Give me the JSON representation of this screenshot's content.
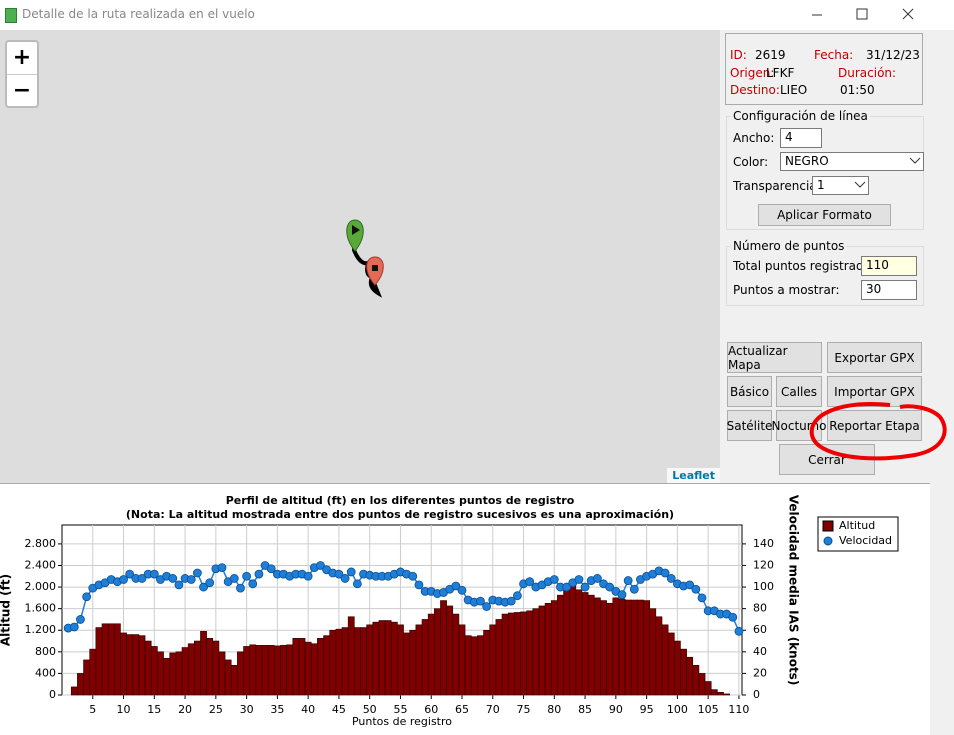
{
  "window": {
    "title": "Detalle de la ruta realizada en el vuelo"
  },
  "map": {
    "zoom_in": "+",
    "zoom_out": "−",
    "attribution": "Leaflet"
  },
  "info": {
    "id_label": "ID:",
    "id": "2619",
    "date_label": "Fecha:",
    "date": "31/12/23",
    "origin_label": "Origen:",
    "origin": "LFKF",
    "duration_label": "Duración:",
    "destination_label": "Destino:",
    "destination": "LIEO",
    "duration": "01:50"
  },
  "config": {
    "title": "Configuración de línea",
    "width_label": "Ancho:",
    "width": "4",
    "color_label": "Color:",
    "color": "NEGRO",
    "transparency_label": "Transparencia:",
    "transparency": "1",
    "apply": "Aplicar Formato"
  },
  "points": {
    "title": "Número de puntos",
    "total_label": "Total puntos registrados:",
    "total": "110",
    "show_label": "Puntos a mostrar:",
    "show": "30"
  },
  "buttons": {
    "update_map": "Actualizar Mapa",
    "export_gpx": "Exportar GPX",
    "basic": "Básico",
    "streets": "Calles",
    "import_gpx": "Importar GPX",
    "satellite": "Satélite",
    "night": "Nocturno",
    "report": "Reportar Etapa",
    "close": "Cerrar"
  },
  "chart_data": {
    "type": "bar_line",
    "title": "Perfil de altitud (ft) en los diferentes puntos de registro",
    "subtitle": "(Nota: La altitud mostrada entre dos puntos de registro sucesivos es una aproximación)",
    "x_label": "Puntos de registro",
    "y_label": "Altitud (ft)",
    "y2_label": "Velocidad media IAS (knots)",
    "x": [
      1,
      2,
      3,
      4,
      5,
      6,
      7,
      8,
      9,
      10,
      11,
      12,
      13,
      14,
      15,
      16,
      17,
      18,
      19,
      20,
      21,
      22,
      23,
      24,
      25,
      26,
      27,
      28,
      29,
      30,
      31,
      32,
      33,
      34,
      35,
      36,
      37,
      38,
      39,
      40,
      41,
      42,
      43,
      44,
      45,
      46,
      47,
      48,
      49,
      50,
      51,
      52,
      53,
      54,
      55,
      56,
      57,
      58,
      59,
      60,
      61,
      62,
      63,
      64,
      65,
      66,
      67,
      68,
      69,
      70,
      71,
      72,
      73,
      74,
      75,
      76,
      77,
      78,
      79,
      80,
      81,
      82,
      83,
      84,
      85,
      86,
      87,
      88,
      89,
      90,
      91,
      92,
      93,
      94,
      95,
      96,
      97,
      98,
      99,
      100,
      101,
      102,
      103,
      104,
      105,
      106,
      107,
      108,
      109,
      110
    ],
    "series": [
      {
        "name": "Altitud",
        "color": "#800000",
        "values": [
          0,
          150,
          400,
          650,
          850,
          1250,
          1320,
          1320,
          1320,
          1150,
          1120,
          1120,
          1100,
          1000,
          900,
          800,
          680,
          780,
          800,
          880,
          950,
          1000,
          1180,
          1050,
          1000,
          800,
          650,
          550,
          800,
          900,
          930,
          920,
          920,
          920,
          910,
          920,
          930,
          1050,
          1050,
          980,
          950,
          1050,
          1100,
          1200,
          1220,
          1250,
          1450,
          1250,
          1250,
          1300,
          1350,
          1380,
          1380,
          1350,
          1300,
          1150,
          1200,
          1300,
          1400,
          1500,
          1600,
          1750,
          1650,
          1500,
          1300,
          1100,
          1080,
          1100,
          1200,
          1300,
          1400,
          1500,
          1520,
          1530,
          1540,
          1560,
          1600,
          1650,
          1700,
          1750,
          1850,
          1950,
          2050,
          1950,
          1900,
          1850,
          1800,
          1750,
          1700,
          1800,
          1780,
          1760,
          1760,
          1760,
          1750,
          1600,
          1450,
          1300,
          1150,
          1000,
          850,
          700,
          550,
          400,
          250,
          100,
          50,
          20,
          0,
          0
        ]
      },
      {
        "name": "Velocidad",
        "color": "#1f7fd8",
        "axis": "y2",
        "values": [
          62,
          63,
          70,
          91,
          99,
          102,
          104,
          107,
          105,
          107,
          112,
          108,
          108,
          112,
          112,
          107,
          110,
          108,
          102,
          108,
          107,
          113,
          100,
          104,
          117,
          118,
          105,
          108,
          99,
          110,
          103,
          112,
          120,
          117,
          112,
          112,
          110,
          112,
          112,
          110,
          118,
          120,
          116,
          113,
          112,
          108,
          114,
          103,
          112,
          111,
          110,
          110,
          110,
          112,
          114,
          112,
          110,
          102,
          96,
          96,
          94,
          95,
          98,
          101,
          97,
          88,
          86,
          87,
          82,
          88,
          87,
          86,
          87,
          92,
          103,
          105,
          100,
          102,
          105,
          107,
          100,
          100,
          104,
          107,
          100,
          106,
          108,
          103,
          100,
          96,
          93,
          106,
          98,
          107,
          110,
          112,
          115,
          113,
          108,
          103,
          101,
          102,
          98,
          90,
          78,
          78,
          75,
          75,
          72,
          59
        ]
      }
    ],
    "xlim": [
      0,
      110.5
    ],
    "xticks": [
      5,
      10,
      15,
      20,
      25,
      30,
      35,
      40,
      45,
      50,
      55,
      60,
      65,
      70,
      75,
      80,
      85,
      90,
      95,
      100,
      105,
      110
    ],
    "ylim": [
      0,
      3150
    ],
    "yticks": [
      0,
      400,
      800,
      {
        "value": 1200,
        "label": "1.200"
      },
      {
        "value": 1600,
        "label": "1.600"
      },
      {
        "value": 2000,
        "label": "2.000"
      },
      {
        "value": 2400,
        "label": "2.400"
      },
      {
        "value": 2800,
        "label": "2.800"
      }
    ],
    "y2lim": [
      0,
      157.5
    ],
    "y2ticks": [
      0,
      20,
      40,
      60,
      80,
      100,
      120,
      140
    ],
    "grid": true,
    "legend": "right"
  }
}
